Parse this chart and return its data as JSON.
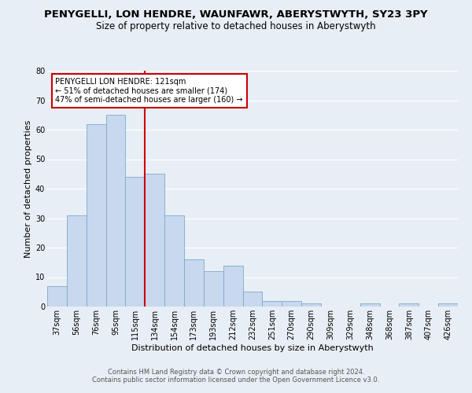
{
  "title": "PENYGELLI, LON HENDRE, WAUNFAWR, ABERYSTWYTH, SY23 3PY",
  "subtitle": "Size of property relative to detached houses in Aberystwyth",
  "xlabel": "Distribution of detached houses by size in Aberystwyth",
  "ylabel": "Number of detached properties",
  "bin_labels": [
    "37sqm",
    "56sqm",
    "76sqm",
    "95sqm",
    "115sqm",
    "134sqm",
    "154sqm",
    "173sqm",
    "193sqm",
    "212sqm",
    "232sqm",
    "251sqm",
    "270sqm",
    "290sqm",
    "309sqm",
    "329sqm",
    "348sqm",
    "368sqm",
    "387sqm",
    "407sqm",
    "426sqm"
  ],
  "bar_values": [
    7,
    31,
    62,
    65,
    44,
    45,
    31,
    16,
    12,
    14,
    5,
    2,
    2,
    1,
    0,
    0,
    1,
    0,
    1,
    0,
    1
  ],
  "bar_color": "#c8d8ee",
  "bar_edge_color": "#7aaacb",
  "vline_x": 4.5,
  "vline_color": "#cc0000",
  "ylim": [
    0,
    80
  ],
  "yticks": [
    0,
    10,
    20,
    30,
    40,
    50,
    60,
    70,
    80
  ],
  "annotation_title": "PENYGELLI LON HENDRE: 121sqm",
  "annotation_line1": "← 51% of detached houses are smaller (174)",
  "annotation_line2": "47% of semi-detached houses are larger (160) →",
  "annotation_box_color": "#ffffff",
  "annotation_box_edge": "#cc0000",
  "footer_line1": "Contains HM Land Registry data © Crown copyright and database right 2024.",
  "footer_line2": "Contains public sector information licensed under the Open Government Licence v3.0.",
  "background_color": "#e8eef5",
  "grid_color": "#ffffff",
  "title_fontsize": 9.5,
  "subtitle_fontsize": 8.5,
  "axis_label_fontsize": 8,
  "tick_fontsize": 7,
  "footer_fontsize": 6
}
